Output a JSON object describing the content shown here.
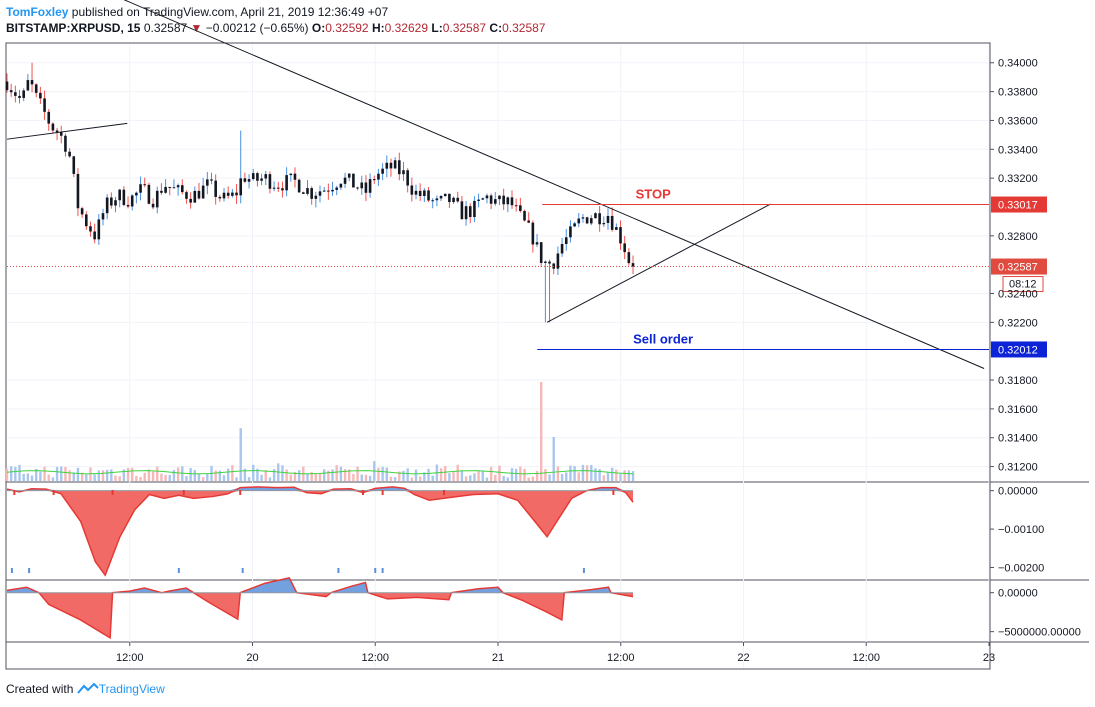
{
  "header": {
    "author": "TomFoxley",
    "published": " published on TradingView.com, April 21, 2019 12:36:49 +07",
    "symbol": "BITSTAMP:XRPUSD",
    "interval": ", 15",
    "last": "0.32587",
    "change_arrow": "▼",
    "change": "−0.00212 (−0.65%)",
    "open_label": "O:",
    "open": "0.32592",
    "high_label": "H:",
    "high": "0.32629",
    "low_label": "L:",
    "low": "0.32587",
    "close_label": "C:",
    "close": "0.32587"
  },
  "footer": {
    "created_with": "Created with",
    "brand": "TradingView",
    "logo_icon": "tradingview-logo-icon"
  },
  "colors": {
    "up": "#4b8fe0",
    "down": "#ef5350",
    "candle_body": "#131722",
    "stop_line": "#e53935",
    "sell_line": "#0d24d6",
    "last_price": "#e04a3f",
    "volume_ma": "#3cd43c",
    "grid": "#f0f3fa",
    "panel_bg": "#ffffff"
  },
  "chart_data": [
    {
      "type": "candlestick",
      "series": [
        {
          "name": "BITSTAMP:XRPUSD, 15"
        }
      ],
      "ylim": [
        0.311,
        0.3413
      ],
      "y_ticks": [
        "0.34000",
        "0.33800",
        "0.33600",
        "0.33400",
        "0.33200",
        "0.32800",
        "0.32400",
        "0.32200",
        "0.31800",
        "0.31600",
        "0.31400",
        "0.31200"
      ],
      "x_ticks": [
        "12:00",
        "20",
        "12:00",
        "21",
        "12:00",
        "22",
        "12:00",
        "23"
      ],
      "x_range_days": [
        19.0,
        23.0
      ],
      "close_path": [
        [
          19.0,
          0.3387
        ],
        [
          19.03,
          0.338
        ],
        [
          19.06,
          0.3373
        ],
        [
          19.09,
          0.3388
        ],
        [
          19.12,
          0.3375
        ],
        [
          19.15,
          0.3366
        ],
        [
          19.18,
          0.3356
        ],
        [
          19.21,
          0.3352
        ],
        [
          19.25,
          0.334
        ],
        [
          19.29,
          0.33
        ],
        [
          19.32,
          0.329
        ],
        [
          19.36,
          0.328
        ],
        [
          19.4,
          0.33
        ],
        [
          19.45,
          0.3308
        ],
        [
          19.5,
          0.3305
        ],
        [
          19.55,
          0.3312
        ],
        [
          19.6,
          0.3305
        ],
        [
          19.64,
          0.3316
        ],
        [
          19.7,
          0.331
        ],
        [
          19.76,
          0.3308
        ],
        [
          19.82,
          0.3315
        ],
        [
          19.88,
          0.3305
        ],
        [
          19.93,
          0.3308
        ],
        [
          19.96,
          0.3322
        ],
        [
          20.0,
          0.3318
        ],
        [
          20.05,
          0.332
        ],
        [
          20.1,
          0.3316
        ],
        [
          20.17,
          0.3318
        ],
        [
          20.24,
          0.331
        ],
        [
          20.3,
          0.3313
        ],
        [
          20.36,
          0.332
        ],
        [
          20.42,
          0.3315
        ],
        [
          20.46,
          0.331
        ],
        [
          20.5,
          0.3322
        ],
        [
          20.57,
          0.3328
        ],
        [
          20.62,
          0.3322
        ],
        [
          20.66,
          0.331
        ],
        [
          20.7,
          0.3307
        ],
        [
          20.75,
          0.3302
        ],
        [
          20.8,
          0.3305
        ],
        [
          20.85,
          0.3296
        ],
        [
          20.9,
          0.3298
        ],
        [
          20.95,
          0.3307
        ],
        [
          21.0,
          0.3303
        ],
        [
          21.05,
          0.3303
        ],
        [
          21.1,
          0.329
        ],
        [
          21.14,
          0.328
        ],
        [
          21.17,
          0.3266
        ],
        [
          21.2,
          0.326
        ],
        [
          21.23,
          0.3263
        ],
        [
          21.26,
          0.3274
        ],
        [
          21.3,
          0.3282
        ],
        [
          21.34,
          0.3292
        ],
        [
          21.38,
          0.3294
        ],
        [
          21.42,
          0.3294
        ],
        [
          21.45,
          0.3295
        ],
        [
          21.48,
          0.3285
        ],
        [
          21.51,
          0.3275
        ],
        [
          21.53,
          0.3264
        ],
        [
          21.55,
          0.3259
        ]
      ],
      "notable_points": {
        "high": 0.34,
        "spike_high": 0.3353,
        "low": 0.322
      },
      "annotations": [
        {
          "type": "trendline",
          "label": "",
          "from": [
            18.5,
            0.3515
          ],
          "to": [
            22.98,
            0.3188
          ]
        },
        {
          "type": "trendline",
          "label": "",
          "from": [
            19.0,
            0.3347
          ],
          "to": [
            19.49,
            0.3358
          ]
        },
        {
          "type": "trendline",
          "label": "",
          "from": [
            21.2,
            0.322
          ],
          "to": [
            22.11,
            0.3302
          ]
        },
        {
          "type": "horizontal_ray",
          "label": "STOP",
          "price": 0.33017,
          "price_label": "0.33017",
          "from_x": 21.18
        },
        {
          "type": "horizontal_ray",
          "label": "Sell order",
          "price": 0.32012,
          "price_label": "0.32012",
          "from_x": 21.16
        },
        {
          "type": "last_price",
          "price": 0.32587,
          "price_label": "0.32587",
          "countdown": "08:12"
        }
      ]
    },
    {
      "type": "bar",
      "series": [
        {
          "name": ""
        }
      ],
      "values_by_time": [
        [
          19.5,
          12
        ],
        [
          19.95,
          48
        ],
        [
          20.1,
          16
        ],
        [
          20.5,
          18
        ],
        [
          21.0,
          14
        ],
        [
          21.17,
          90
        ],
        [
          21.23,
          40
        ],
        [
          21.3,
          14
        ],
        [
          21.55,
          9
        ]
      ],
      "ma_level": 8,
      "ylim": [
        0,
        110
      ]
    },
    {
      "type": "area",
      "series": [
        {
          "name": ""
        }
      ],
      "y_ticks": [
        "0.00000",
        "−0.00100",
        "−0.00200"
      ],
      "ylim": [
        -0.0023,
        0.0002
      ],
      "values_by_time": [
        [
          19.0,
          4e-05
        ],
        [
          19.05,
          -3e-05
        ],
        [
          19.1,
          5e-05
        ],
        [
          19.16,
          4e-05
        ],
        [
          19.22,
          -8e-05
        ],
        [
          19.3,
          -0.0008
        ],
        [
          19.36,
          -0.00185
        ],
        [
          19.4,
          -0.0022
        ],
        [
          19.46,
          -0.0012
        ],
        [
          19.52,
          -0.0005
        ],
        [
          19.58,
          -0.0001
        ],
        [
          19.64,
          -0.0002
        ],
        [
          19.7,
          -0.00012
        ],
        [
          19.76,
          -0.0002
        ],
        [
          19.84,
          -0.00015
        ],
        [
          19.9,
          -8e-05
        ],
        [
          19.95,
          8e-05
        ],
        [
          20.02,
          0.0001
        ],
        [
          20.1,
          8e-05
        ],
        [
          20.17,
          9e-05
        ],
        [
          20.22,
          -5e-05
        ],
        [
          20.28,
          -8e-05
        ],
        [
          20.33,
          4e-05
        ],
        [
          20.4,
          5e-05
        ],
        [
          20.45,
          -5e-05
        ],
        [
          20.5,
          6e-05
        ],
        [
          20.57,
          0.0001
        ],
        [
          20.62,
          6e-05
        ],
        [
          20.66,
          -0.0001
        ],
        [
          20.72,
          -0.00025
        ],
        [
          20.8,
          -0.00018
        ],
        [
          20.9,
          -0.0001
        ],
        [
          21.0,
          -8e-05
        ],
        [
          21.08,
          -0.00025
        ],
        [
          21.15,
          -0.0008
        ],
        [
          21.2,
          -0.0012
        ],
        [
          21.24,
          -0.0008
        ],
        [
          21.3,
          -0.0002
        ],
        [
          21.36,
          0.0
        ],
        [
          21.42,
          8e-05
        ],
        [
          21.48,
          8e-05
        ],
        [
          21.52,
          -5e-05
        ],
        [
          21.55,
          -0.0003
        ]
      ],
      "signals_top": [
        19.03,
        19.19,
        19.43,
        19.72,
        19.95,
        20.45,
        20.53,
        20.78,
        21.47
      ],
      "signals_bottom": [
        19.02,
        19.09,
        19.7,
        19.96,
        20.35,
        20.5,
        20.53,
        21.35
      ]
    },
    {
      "type": "area",
      "series": [
        {
          "name": ""
        }
      ],
      "y_ticks": [
        "0.00000",
        "−5000000.00000"
      ],
      "ylim": [
        -6200000,
        1500000
      ],
      "values_by_time": [
        [
          19.0,
          300000
        ],
        [
          19.08,
          700000
        ],
        [
          19.13,
          0
        ],
        [
          19.17,
          -1500000
        ],
        [
          19.3,
          -3500000
        ],
        [
          19.42,
          -5800000
        ],
        [
          19.43,
          0
        ],
        [
          19.5,
          200000
        ],
        [
          19.56,
          600000
        ],
        [
          19.63,
          0
        ],
        [
          19.66,
          200000
        ],
        [
          19.73,
          600000
        ],
        [
          19.76,
          0
        ],
        [
          19.82,
          -1200000
        ],
        [
          19.94,
          -3400000
        ],
        [
          19.95,
          0
        ],
        [
          20.05,
          1200000
        ],
        [
          20.15,
          1900000
        ],
        [
          20.18,
          0
        ],
        [
          20.3,
          -500000
        ],
        [
          20.32,
          0
        ],
        [
          20.4,
          800000
        ],
        [
          20.46,
          1300000
        ],
        [
          20.47,
          0
        ],
        [
          20.55,
          -800000
        ],
        [
          20.67,
          -600000
        ],
        [
          20.8,
          -900000
        ],
        [
          20.81,
          0
        ],
        [
          20.92,
          500000
        ],
        [
          21.0,
          700000
        ],
        [
          21.02,
          0
        ],
        [
          21.1,
          -1000000
        ],
        [
          21.2,
          -2500000
        ],
        [
          21.26,
          -3500000
        ],
        [
          21.27,
          0
        ],
        [
          21.38,
          400000
        ],
        [
          21.45,
          700000
        ],
        [
          21.46,
          0
        ],
        [
          21.55,
          -500000
        ]
      ]
    }
  ]
}
